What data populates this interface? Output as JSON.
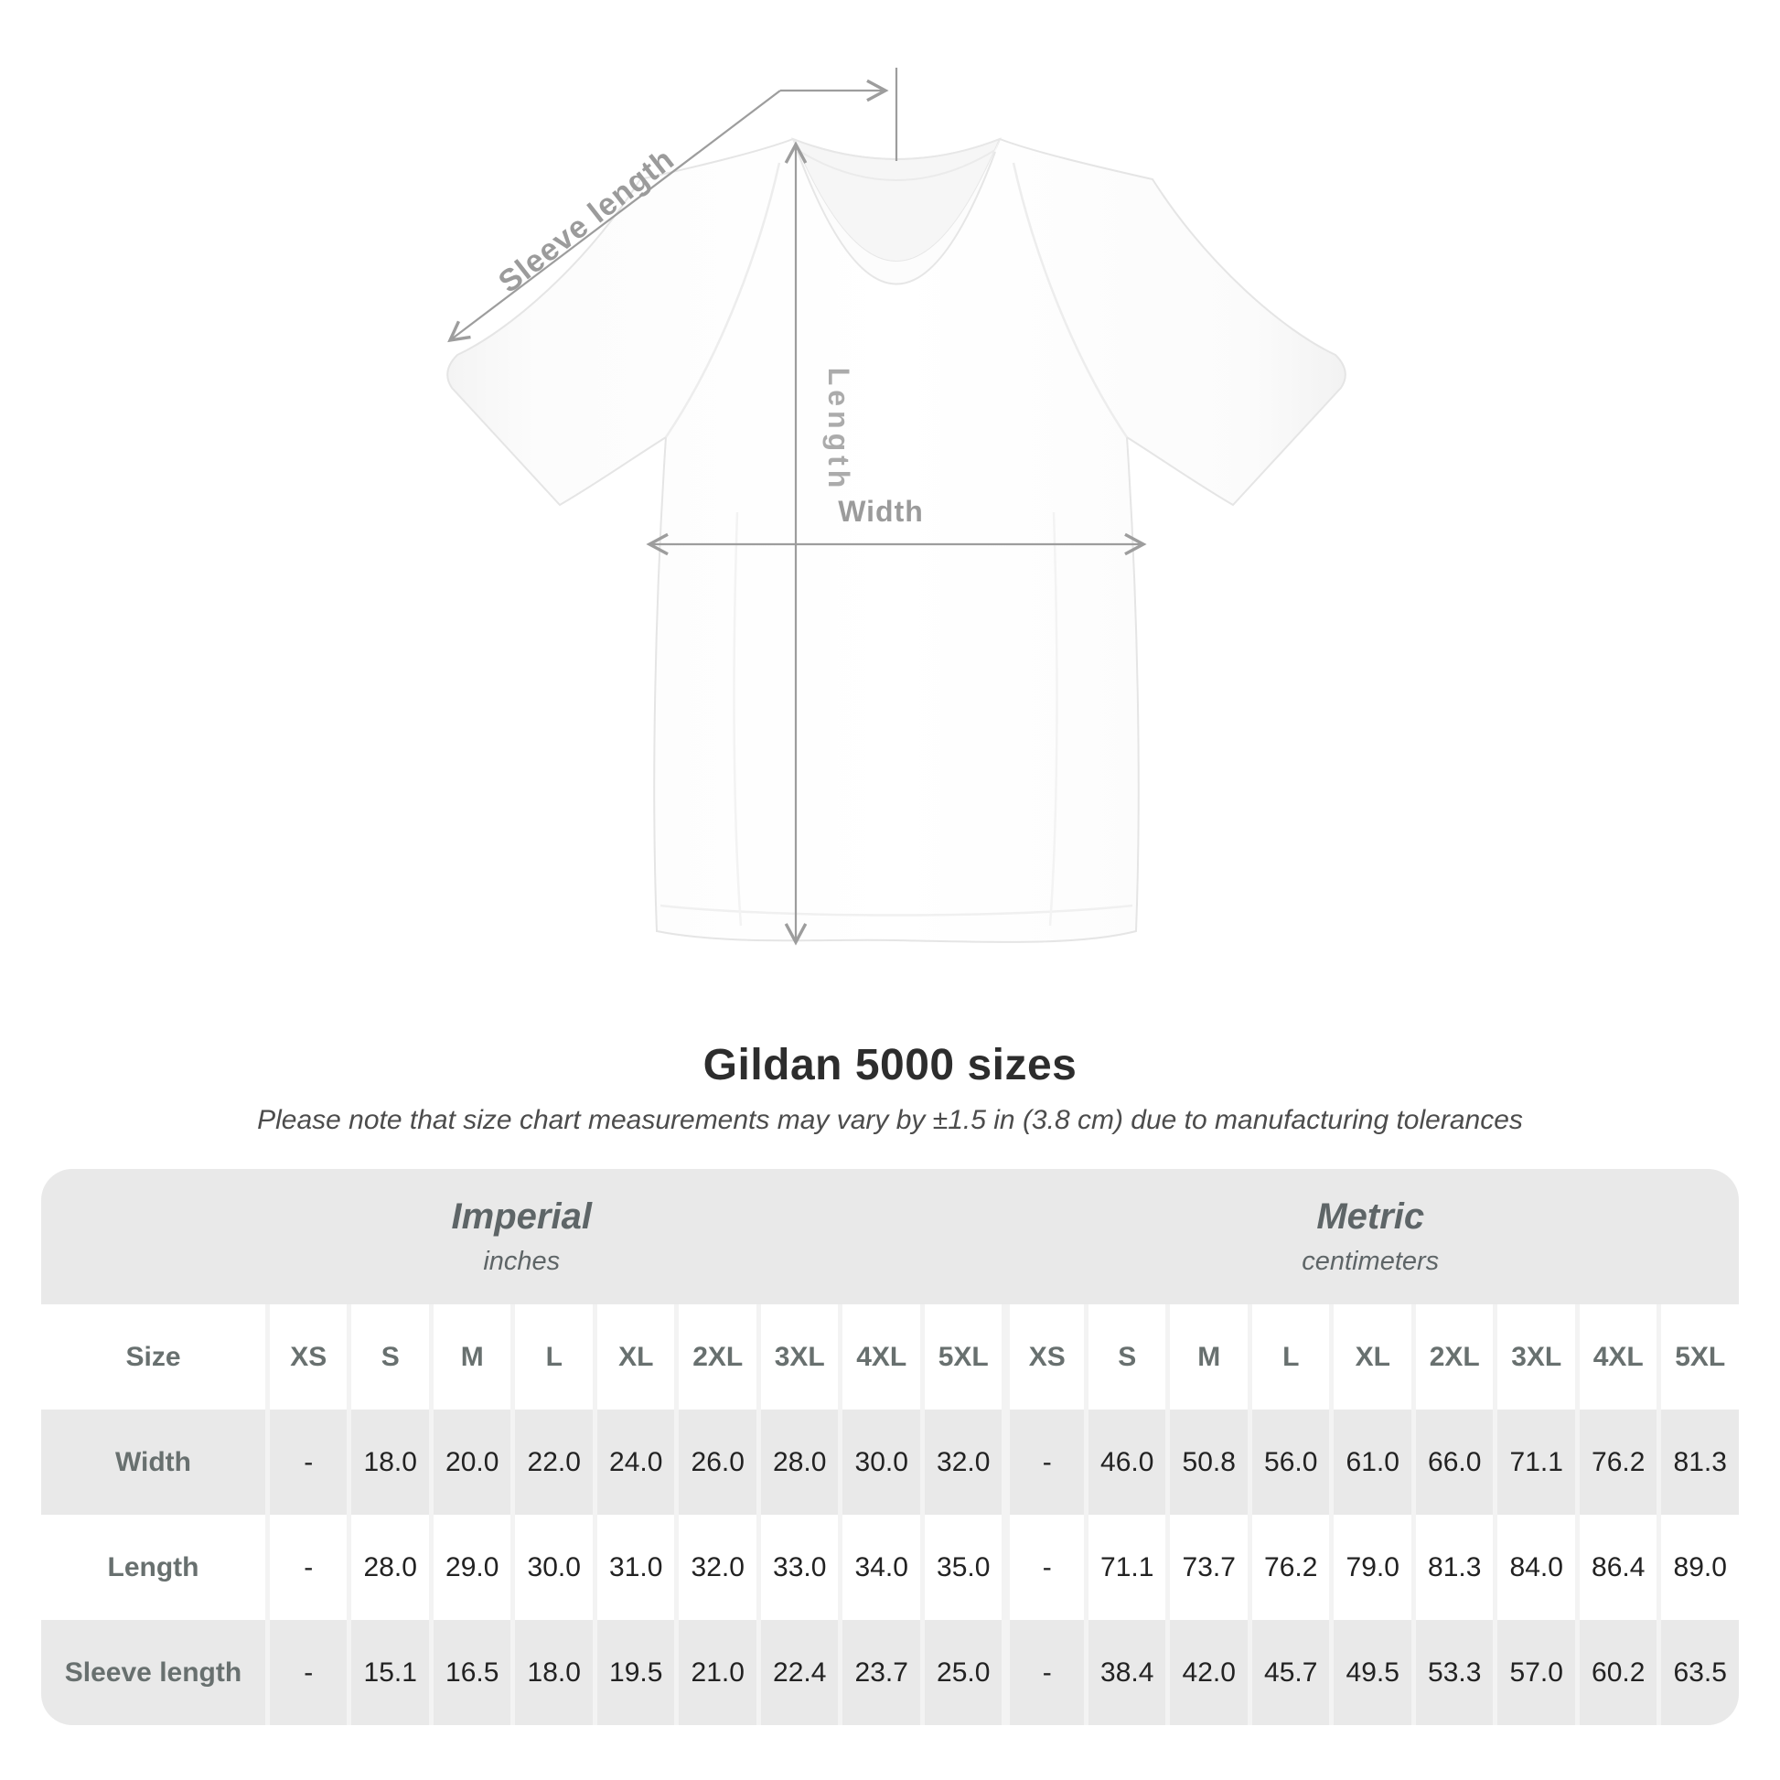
{
  "diagram": {
    "sleeve_length_label": "Sleeve length",
    "length_label": "Length",
    "width_label": "Width"
  },
  "title": "Gildan 5000 sizes",
  "subtitle": "Please note that size chart measurements may vary by ±1.5 in (3.8 cm) due to manufacturing tolerances",
  "chart_data": {
    "type": "table",
    "title": "Gildan 5000 sizes",
    "groups": [
      {
        "name": "Imperial",
        "unit": "inches"
      },
      {
        "name": "Metric",
        "unit": "centimeters"
      }
    ],
    "size_column_header": "Size",
    "sizes": [
      "XS",
      "S",
      "M",
      "L",
      "XL",
      "2XL",
      "3XL",
      "4XL",
      "5XL"
    ],
    "rows": [
      {
        "label": "Width",
        "imperial": [
          "-",
          "18.0",
          "20.0",
          "22.0",
          "24.0",
          "26.0",
          "28.0",
          "30.0",
          "32.0"
        ],
        "metric": [
          "-",
          "46.0",
          "50.8",
          "56.0",
          "61.0",
          "66.0",
          "71.1",
          "76.2",
          "81.3"
        ]
      },
      {
        "label": "Length",
        "imperial": [
          "-",
          "28.0",
          "29.0",
          "30.0",
          "31.0",
          "32.0",
          "33.0",
          "34.0",
          "35.0"
        ],
        "metric": [
          "-",
          "71.1",
          "73.7",
          "76.2",
          "79.0",
          "81.3",
          "84.0",
          "86.4",
          "89.0"
        ]
      },
      {
        "label": "Sleeve length",
        "imperial": [
          "-",
          "15.1",
          "16.5",
          "18.0",
          "19.5",
          "21.0",
          "22.4",
          "23.7",
          "25.0"
        ],
        "metric": [
          "-",
          "38.4",
          "42.0",
          "45.7",
          "49.5",
          "53.3",
          "57.0",
          "60.2",
          "63.5"
        ]
      }
    ]
  },
  "colors": {
    "row_shade": "#e9e9e9",
    "separator": "#f3f3f3",
    "label_text": "#68706f",
    "value_text": "#222222",
    "measure_line": "#9d9d9d",
    "heading_text": "#5e6567",
    "title_text": "#2d2d2d"
  }
}
